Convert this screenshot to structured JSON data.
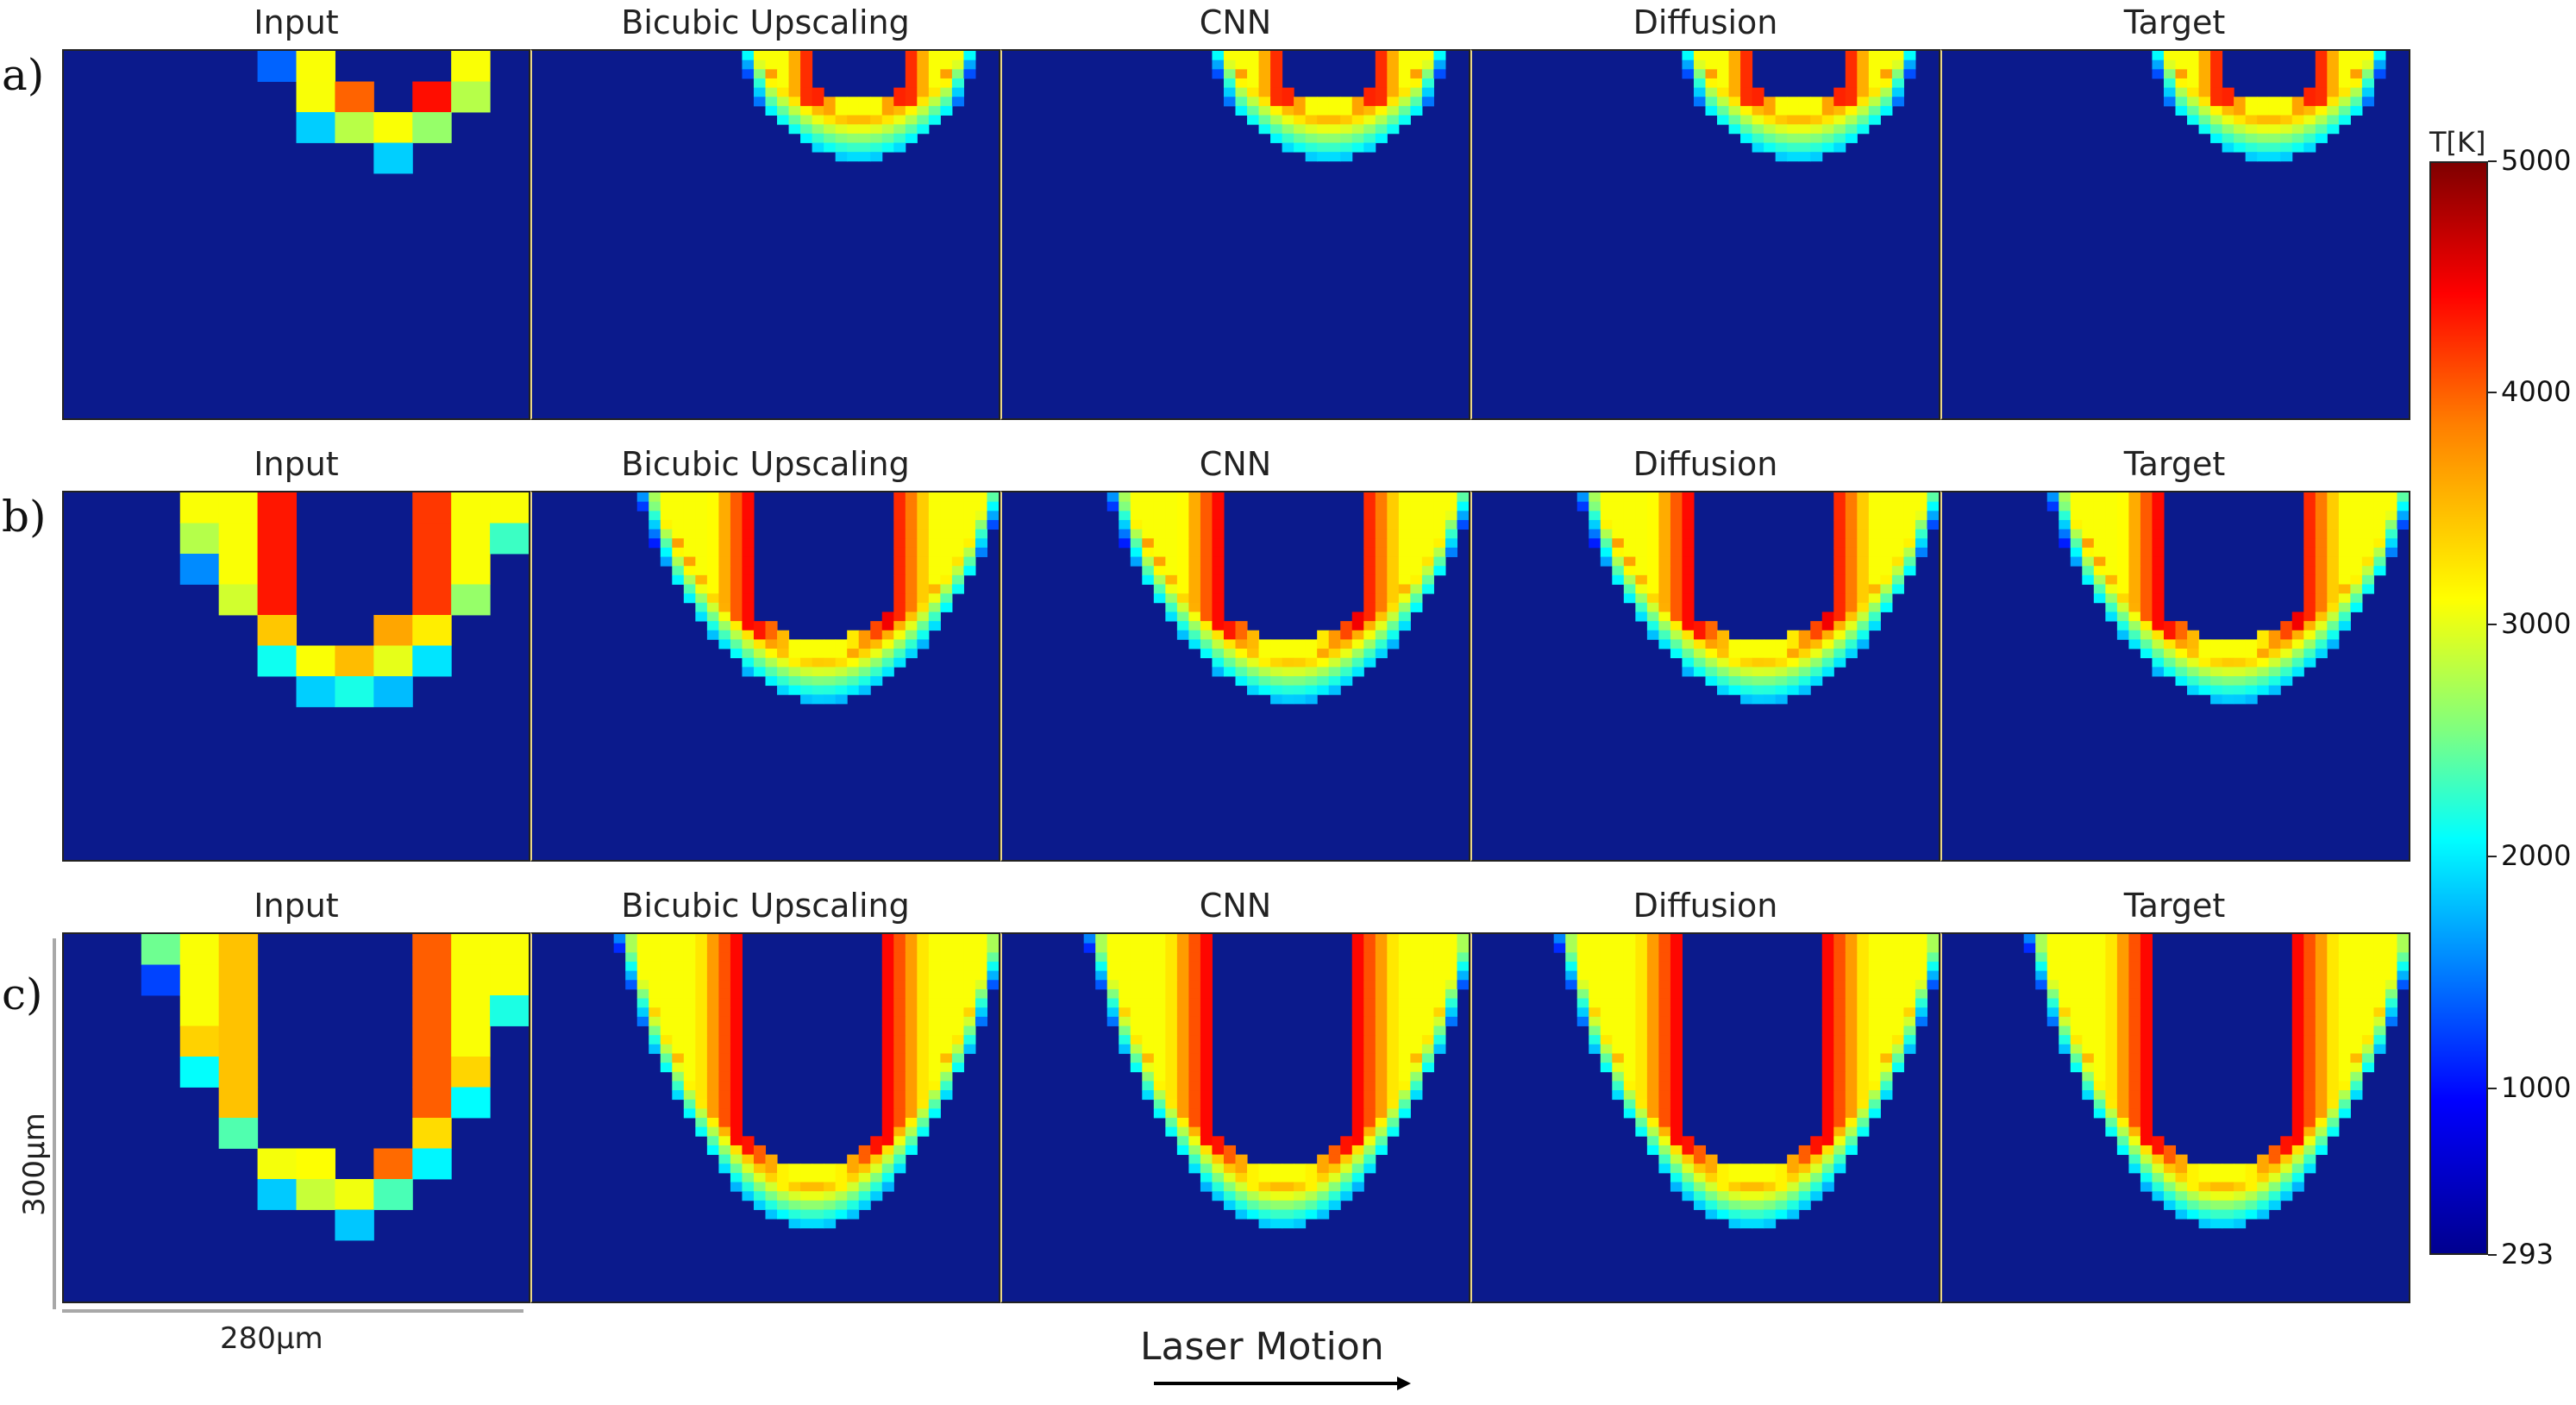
{
  "figure": {
    "column_titles": [
      "Input",
      "Bicubic Upscaling",
      "CNN",
      "Diffusion",
      "Target"
    ],
    "row_labels": [
      "a)",
      "b)",
      "c)"
    ],
    "colorbar": {
      "title": "T[K]",
      "ticks": [
        "5000",
        "4000",
        "3000",
        "2000",
        "1000",
        "293"
      ],
      "min": 293,
      "max": 5000,
      "colormap": "jet"
    },
    "scale_bars": {
      "vertical": "300μm",
      "horizontal": "280μm"
    },
    "motion_label": "Laser Motion",
    "colors": {
      "background_field": "#0b1a8c",
      "panel_divider": "#e8d68a",
      "scale_bar": "#a8a8a8"
    }
  }
}
